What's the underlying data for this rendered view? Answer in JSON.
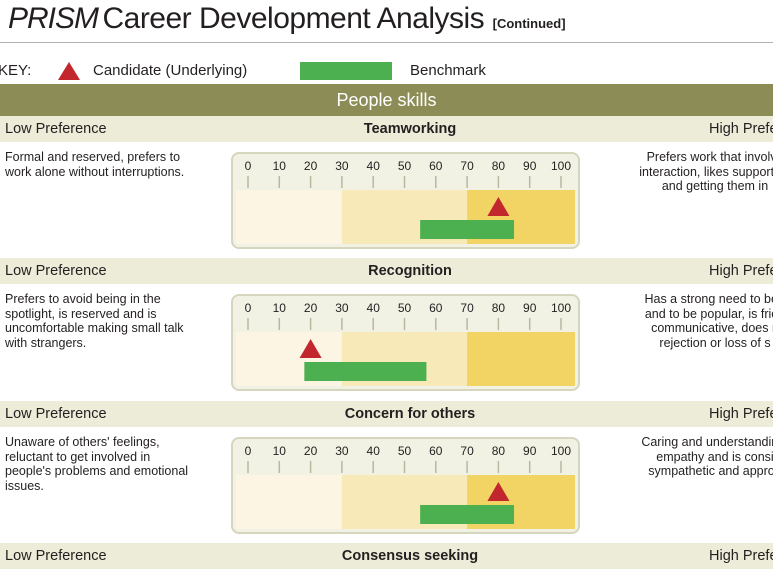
{
  "header": {
    "brand": "PRISM",
    "title": "Career Development Analysis",
    "continued": "[Continued]"
  },
  "key": {
    "label": "KEY:",
    "candidate": "Candidate (Underlying)",
    "benchmark": "Benchmark",
    "colors": {
      "candidate": "#c1272d",
      "benchmark": "#4caf50"
    }
  },
  "section": {
    "title": "People skills"
  },
  "scale": {
    "ticks": [
      "0",
      "10",
      "20",
      "30",
      "40",
      "50",
      "60",
      "70",
      "80",
      "90",
      "100"
    ]
  },
  "traits": [
    {
      "low_label": "Low Preference",
      "name": "Teamworking",
      "high_label": "High Prefe",
      "low_desc": [
        "Formal and reserved, prefers to",
        "work alone without interruptions."
      ],
      "high_desc": [
        "Prefers work that involve",
        "interaction, likes supporting",
        "and getting them in"
      ],
      "candidate": 80,
      "benchmark": [
        55,
        85
      ]
    },
    {
      "low_label": "Low Preference",
      "name": "Recognition",
      "high_label": "High Prefe",
      "low_desc": [
        "Prefers to avoid being in the",
        "spotlight, is reserved and is",
        "uncomfortable making small talk",
        "with strangers."
      ],
      "high_desc": [
        "Has a strong need to be r",
        "and to be popular, is frien",
        "communicative, does n",
        "rejection or loss of s"
      ],
      "candidate": 20,
      "benchmark": [
        18,
        57
      ]
    },
    {
      "low_label": "Low Preference",
      "name": "Concern for others",
      "high_label": "High Prefe",
      "low_desc": [
        "Unaware of others' feelings,",
        "reluctant to get involved in",
        "people's problems and emotional",
        "issues."
      ],
      "high_desc": [
        "Caring and understanding,",
        "empathy and is consi",
        "sympathetic and approa"
      ],
      "candidate": 80,
      "benchmark": [
        55,
        85
      ]
    },
    {
      "low_label": "Low Preference",
      "name": "Consensus seeking",
      "high_label": "High Prefe"
    }
  ]
}
